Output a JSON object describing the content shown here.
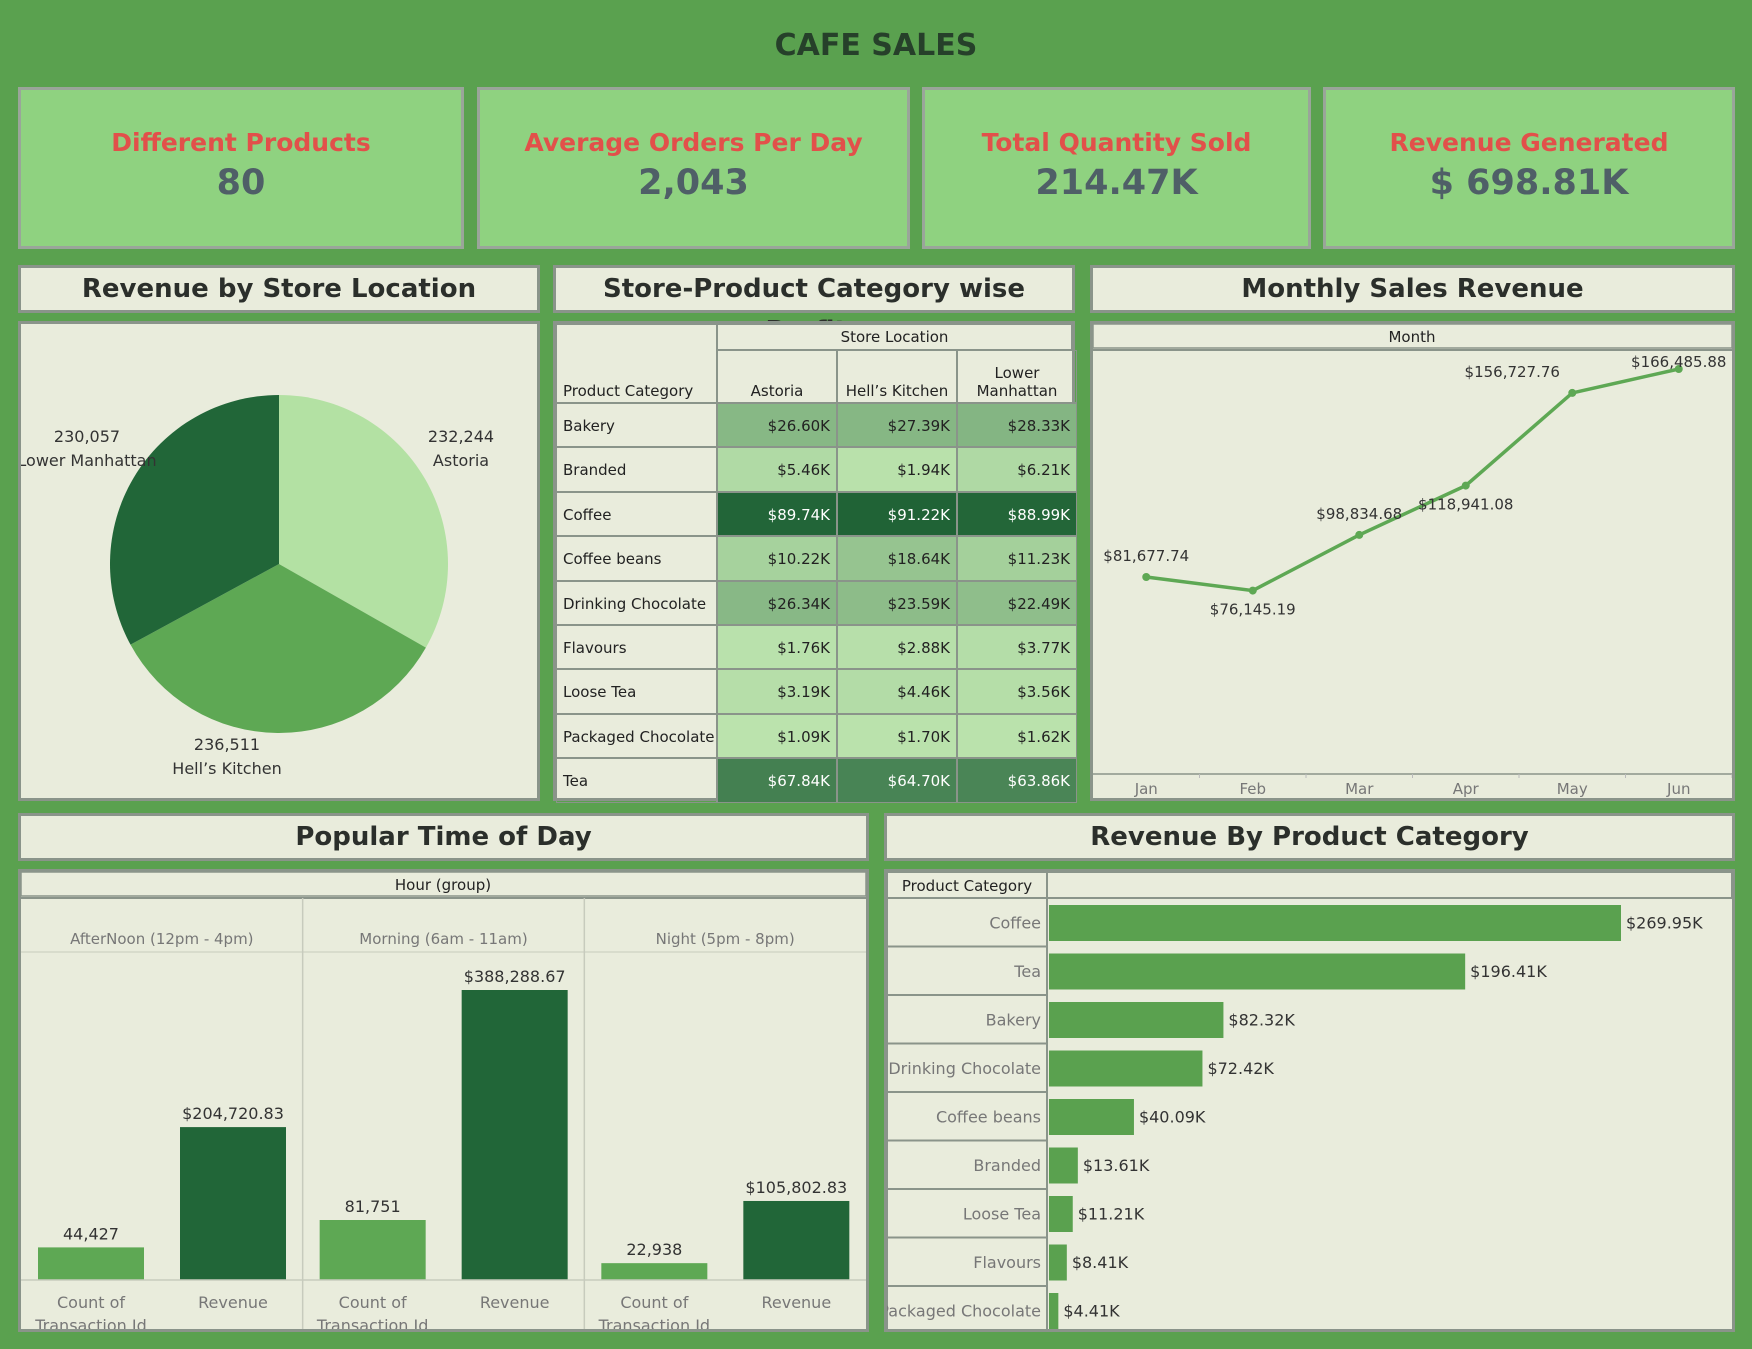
{
  "title": "CAFE SALES",
  "kpis": [
    {
      "label": "Different Products",
      "value": "80"
    },
    {
      "label": "Average Orders Per Day",
      "value": "2,043"
    },
    {
      "label": "Total Quantity Sold",
      "value": "214.47K"
    },
    {
      "label": "Revenue Generated",
      "value": "$ 698.81K"
    }
  ],
  "colors": {
    "background": "#5aa14f",
    "kpi_bg": "#8fd280",
    "kpi_label": "#e2504a",
    "panel_bg": "#e9ecdc",
    "dark_green": "#216638",
    "mid_green": "#5ea854",
    "light_green": "#b3e1a3"
  },
  "panels": {
    "store_pie": "Revenue by Store Location",
    "heatmap": "Store-Product Category wise Profits",
    "monthly": "Monthly Sales Revenue",
    "time_of_day": "Popular Time of Day",
    "by_category": "Revenue By Product Category"
  },
  "chart_data": [
    {
      "type": "pie",
      "title": "Revenue by Store Location",
      "slices": [
        {
          "label": "Astoria",
          "value": 232244,
          "value_label": "232,244",
          "color": "#b3e1a3"
        },
        {
          "label": "Hell’s Kitchen",
          "value": 236511,
          "value_label": "236,511",
          "color": "#5ea854"
        },
        {
          "label": "Lower Manhattan",
          "value": 230057,
          "value_label": "230,057",
          "color": "#216638"
        }
      ]
    },
    {
      "type": "heatmap",
      "title": "Store-Product Category wise Profits",
      "column_group_label": "Store Location",
      "row_header": "Product Category",
      "columns": [
        "Astoria",
        "Hell’s Kitchen",
        "Lower Manhattan"
      ],
      "rows": [
        "Bakery",
        "Branded",
        "Coffee",
        "Coffee beans",
        "Drinking Chocolate",
        "Flavours",
        "Loose Tea",
        "Packaged Chocolate",
        "Tea"
      ],
      "values": [
        [
          26.6,
          27.39,
          28.33
        ],
        [
          5.46,
          1.94,
          6.21
        ],
        [
          89.74,
          91.22,
          88.99
        ],
        [
          10.22,
          18.64,
          11.23
        ],
        [
          26.34,
          23.59,
          22.49
        ],
        [
          1.76,
          2.88,
          3.77
        ],
        [
          3.19,
          4.46,
          3.56
        ],
        [
          1.09,
          1.7,
          1.62
        ],
        [
          67.84,
          64.7,
          63.86
        ]
      ],
      "labels": [
        [
          "$26.60K",
          "$27.39K",
          "$28.33K"
        ],
        [
          "$5.46K",
          "$1.94K",
          "$6.21K"
        ],
        [
          "$89.74K",
          "$91.22K",
          "$88.99K"
        ],
        [
          "$10.22K",
          "$18.64K",
          "$11.23K"
        ],
        [
          "$26.34K",
          "$23.59K",
          "$22.49K"
        ],
        [
          "$1.76K",
          "$2.88K",
          "$3.77K"
        ],
        [
          "$3.19K",
          "$4.46K",
          "$3.56K"
        ],
        [
          "$1.09K",
          "$1.70K",
          "$1.62K"
        ],
        [
          "$67.84K",
          "$64.70K",
          "$63.86K"
        ]
      ]
    },
    {
      "type": "line",
      "title": "Monthly Sales Revenue",
      "xlabel": "Month",
      "x": [
        "Jan",
        "Feb",
        "Mar",
        "Apr",
        "May",
        "Jun"
      ],
      "values": [
        81677.74,
        76145.19,
        98834.68,
        118941.08,
        156727.76,
        166485.88
      ],
      "value_labels": [
        "$81,677.74",
        "$76,145.19",
        "$98,834.68",
        "$118,941.08",
        "$156,727.76",
        "$166,485.88"
      ],
      "ylim": [
        0,
        175000
      ]
    },
    {
      "type": "bar",
      "title": "Popular Time of Day",
      "group_label": "Hour (group)",
      "groups": [
        "AfterNoon (12pm - 4pm)",
        "Morning (6am - 11am)",
        "Night (5pm - 8pm)"
      ],
      "measures": [
        "Count of Transaction Id",
        "Revenue"
      ],
      "values": [
        [
          44427,
          204720.83
        ],
        [
          81751,
          388288.67
        ],
        [
          22938,
          105802.83
        ]
      ],
      "value_labels": [
        [
          "44,427",
          "$204,720.83"
        ],
        [
          "81,751",
          "$388,288.67"
        ],
        [
          "22,938",
          "$105,802.83"
        ]
      ],
      "ylim": [
        0,
        400000
      ]
    },
    {
      "type": "bar",
      "orientation": "horizontal",
      "title": "Revenue By Product Category",
      "row_header": "Product Category",
      "categories": [
        "Coffee",
        "Tea",
        "Bakery",
        "Drinking Chocolate",
        "Coffee beans",
        "Branded",
        "Loose Tea",
        "Flavours",
        "Packaged Chocolate"
      ],
      "values": [
        269.95,
        196.41,
        82.32,
        72.42,
        40.09,
        13.61,
        11.21,
        8.41,
        4.41
      ],
      "value_labels": [
        "$269.95K",
        "$196.41K",
        "$82.32K",
        "$72.42K",
        "$40.09K",
        "$13.61K",
        "$11.21K",
        "$8.41K",
        "$4.41K"
      ]
    }
  ]
}
